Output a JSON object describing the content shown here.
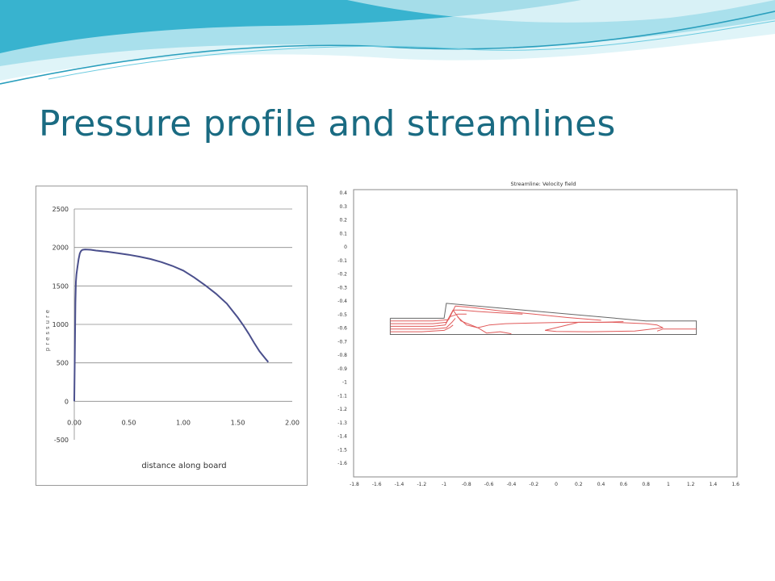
{
  "slide": {
    "title": "Pressure profile and streamlines",
    "colors": {
      "title": "#1a6b82",
      "wave_dark": "#1f9cbf",
      "wave_light": "#c6ecf4",
      "pressure_line": "#4a4f8c",
      "streamline": "#e05a5a"
    }
  },
  "chart_data": [
    {
      "type": "line",
      "title": "",
      "xlabel": "distance along board",
      "ylabel": "pressure",
      "xlim": [
        0,
        2.0
      ],
      "ylim": [
        -500,
        2500
      ],
      "x_ticks": [
        "0.00",
        "0.50",
        "1.00",
        "1.50",
        "2.00"
      ],
      "x_tick_values": [
        0,
        0.5,
        1.0,
        1.5,
        2.0
      ],
      "y_ticks": [
        "2500",
        "2000",
        "1500",
        "1000",
        "500",
        "0",
        "-500"
      ],
      "y_tick_values": [
        2500,
        2000,
        1500,
        1000,
        500,
        0,
        -500
      ],
      "grid": "horizontal",
      "series": [
        {
          "x": [
            0.0,
            0.01,
            0.015,
            0.02,
            0.03,
            0.04,
            0.05,
            0.06,
            0.07,
            0.08,
            0.1,
            0.15,
            0.2,
            0.3,
            0.4,
            0.5,
            0.6,
            0.7,
            0.8,
            0.9,
            1.0,
            1.1,
            1.2,
            1.3,
            1.4,
            1.5,
            1.55,
            1.6,
            1.65,
            1.7,
            1.75,
            1.78
          ],
          "y": [
            0,
            1280,
            1550,
            1650,
            1750,
            1850,
            1920,
            1950,
            1965,
            1970,
            1975,
            1970,
            1960,
            1945,
            1925,
            1905,
            1880,
            1850,
            1810,
            1760,
            1700,
            1610,
            1510,
            1400,
            1270,
            1090,
            990,
            880,
            760,
            650,
            560,
            510
          ]
        }
      ]
    },
    {
      "type": "line",
      "title": "Streamline: Velocity field",
      "xlim": [
        -1.8,
        1.6
      ],
      "ylim": [
        -1.6,
        0.4
      ],
      "x_ticks": [
        "-1.8",
        "-1.6",
        "-1.4",
        "-1.2",
        "-1",
        "-0.8",
        "-0.6",
        "-0.4",
        "-0.2",
        "0",
        "0.2",
        "0.4",
        "0.6",
        "0.8",
        "1",
        "1.2",
        "1.4",
        "1.6"
      ],
      "x_tick_values": [
        -1.8,
        -1.6,
        -1.4,
        -1.2,
        -1,
        -0.8,
        -0.6,
        -0.4,
        -0.2,
        0,
        0.2,
        0.4,
        0.6,
        0.8,
        1,
        1.2,
        1.4,
        1.6
      ],
      "y_ticks": [
        "0.4",
        "0.3",
        "0.2",
        "0.1",
        "0",
        "-0.1",
        "-0.2",
        "-0.3",
        "-0.4",
        "-0.5",
        "-0.6",
        "-0.7",
        "-0.8",
        "-0.9",
        "-1",
        "-1.1",
        "-1.2",
        "-1.3",
        "-1.4",
        "-1.5",
        "-1.6"
      ],
      "y_tick_values": [
        0.4,
        0.3,
        0.2,
        0.1,
        0,
        -0.1,
        -0.2,
        -0.3,
        -0.4,
        -0.5,
        -0.6,
        -0.7,
        -0.8,
        -0.9,
        -1,
        -1.1,
        -1.2,
        -1.3,
        -1.4,
        -1.5,
        -1.6
      ],
      "grid": false,
      "boundary": {
        "x": [
          -1.48,
          -1.0,
          -0.98,
          0.8,
          1.25,
          1.25,
          -1.48,
          -1.48
        ],
        "y": [
          -0.53,
          -0.53,
          -0.42,
          -0.55,
          -0.55,
          -0.65,
          -0.65,
          -0.53
        ]
      },
      "streamlines": [
        {
          "x": [
            -1.48,
            -1.1,
            -0.96,
            -0.9,
            -0.75,
            -0.5,
            -0.2,
            0.1,
            0.4
          ],
          "y": [
            -0.55,
            -0.55,
            -0.54,
            -0.44,
            -0.45,
            -0.475,
            -0.5,
            -0.525,
            -0.545
          ]
        },
        {
          "x": [
            -1.48,
            -1.1,
            -0.98,
            -0.92,
            -0.85,
            -0.7,
            -0.5,
            -0.3
          ],
          "y": [
            -0.57,
            -0.57,
            -0.56,
            -0.47,
            -0.47,
            -0.48,
            -0.49,
            -0.5
          ]
        },
        {
          "x": [
            -1.48,
            -1.1,
            -0.99,
            -0.95,
            -0.88,
            -0.8
          ],
          "y": [
            -0.59,
            -0.59,
            -0.58,
            -0.52,
            -0.5,
            -0.5
          ]
        },
        {
          "x": [
            -1.48,
            -1.1,
            -0.98,
            -0.93,
            -0.9
          ],
          "y": [
            -0.61,
            -0.61,
            -0.6,
            -0.56,
            -0.53
          ]
        },
        {
          "x": [
            -1.48,
            -1.2,
            -1.0,
            -0.95,
            -0.92
          ],
          "y": [
            -0.63,
            -0.63,
            -0.62,
            -0.6,
            -0.58
          ]
        },
        {
          "x": [
            -0.92,
            -0.85,
            -0.7,
            -0.62,
            -0.5,
            -0.4
          ],
          "y": [
            -0.47,
            -0.55,
            -0.6,
            -0.64,
            -0.63,
            -0.645
          ]
        },
        {
          "x": [
            -0.88,
            -0.8,
            -0.7,
            -0.6,
            -0.45,
            -0.2,
            0.1,
            0.4,
            0.6
          ],
          "y": [
            -0.52,
            -0.58,
            -0.6,
            -0.58,
            -0.57,
            -0.565,
            -0.56,
            -0.56,
            -0.555
          ]
        },
        {
          "x": [
            -0.1,
            0.2,
            0.5,
            0.8,
            0.9,
            0.95,
            0.7,
            0.3,
            0.0,
            -0.1
          ],
          "y": [
            -0.62,
            -0.56,
            -0.56,
            -0.57,
            -0.58,
            -0.6,
            -0.625,
            -0.63,
            -0.628,
            -0.62
          ]
        },
        {
          "x": [
            0.9,
            0.95,
            1.25
          ],
          "y": [
            -0.625,
            -0.61,
            -0.61
          ]
        }
      ]
    }
  ]
}
